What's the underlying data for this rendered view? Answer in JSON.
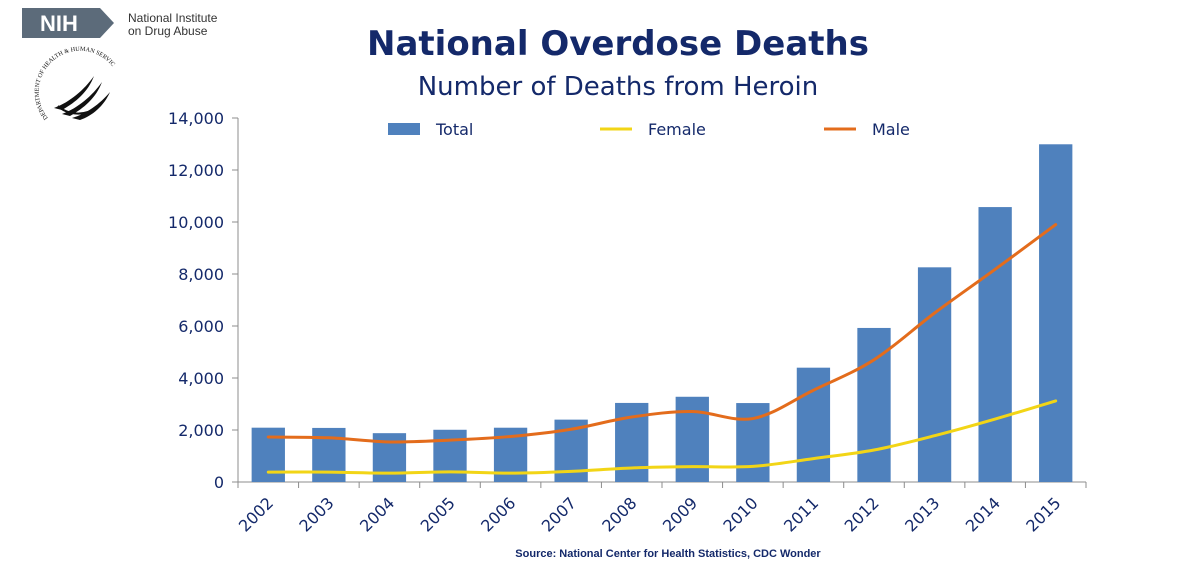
{
  "header": {
    "logo_text": "NIH",
    "institute_line1": "National Institute",
    "institute_line2": "on Drug Abuse",
    "seal_text": "DEPARTMENT OF HEALTH & HUMAN SERVICES · USA"
  },
  "chart_data": {
    "type": "bar",
    "title": "National Overdose Deaths",
    "subtitle": "Number of Deaths from Heroin",
    "categories": [
      "2002",
      "2003",
      "2004",
      "2005",
      "2006",
      "2007",
      "2008",
      "2009",
      "2010",
      "2011",
      "2012",
      "2013",
      "2014",
      "2015"
    ],
    "series": [
      {
        "name": "Total",
        "kind": "bar",
        "color": "#4f81bd",
        "values": [
          2089,
          2080,
          1878,
          2009,
          2088,
          2399,
          3041,
          3278,
          3036,
          4397,
          5925,
          8257,
          10574,
          12989
        ]
      },
      {
        "name": "Female",
        "kind": "line",
        "color": "#f2d516",
        "values": [
          380,
          380,
          340,
          390,
          340,
          410,
          540,
          590,
          600,
          900,
          1230,
          1780,
          2420,
          3120
        ]
      },
      {
        "name": "Male",
        "kind": "line",
        "color": "#e36c1c",
        "values": [
          1730,
          1700,
          1540,
          1610,
          1750,
          2030,
          2500,
          2710,
          2440,
          3530,
          4700,
          6500,
          8180,
          9900
        ]
      }
    ],
    "yticks": [
      "0",
      "2,000",
      "4,000",
      "6,000",
      "8,000",
      "10,000",
      "12,000",
      "14,000"
    ],
    "ylim": [
      0,
      14000
    ],
    "xlabel": "",
    "ylabel": "",
    "legend_position": "top",
    "grid": false,
    "source": "Source: National Center for Health Statistics, CDC Wonder"
  }
}
